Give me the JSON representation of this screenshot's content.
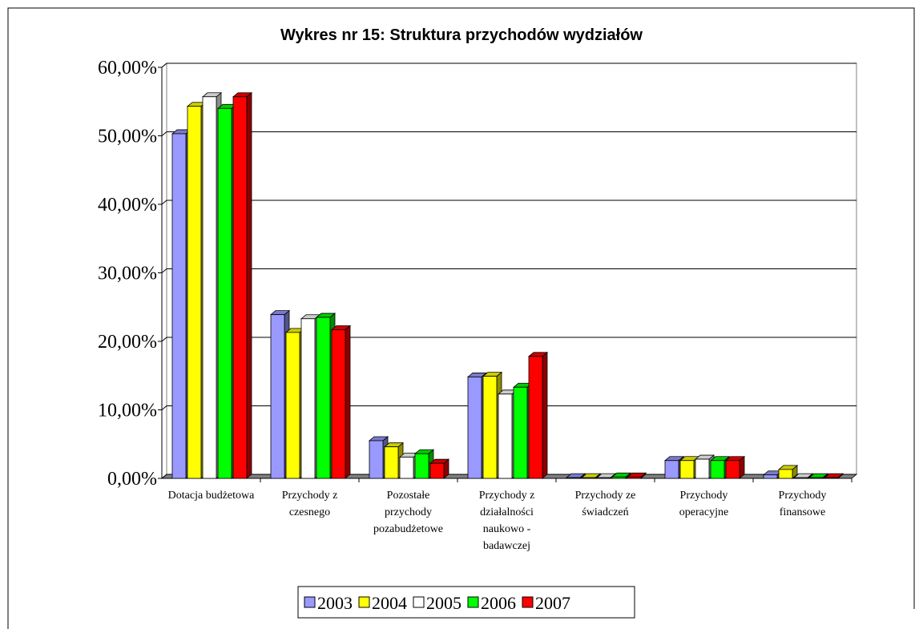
{
  "chart_data": {
    "type": "bar3d",
    "title": "Wykres nr 15: Struktura przychodów wydziałów",
    "categories": [
      "Dotacja budżetowa",
      "Przychody z czesnego",
      "Pozostałe przychody pozabudżetowe",
      "Przychody z działalności naukowo - badawczej",
      "Przychody ze świadczeń",
      "Przychody operacyjne",
      "Przychody finansowe"
    ],
    "series": [
      {
        "name": "2003",
        "color": "#9999ff",
        "values": [
          50.3,
          23.9,
          5.5,
          14.8,
          0.1,
          2.6,
          0.5
        ]
      },
      {
        "name": "2004",
        "color": "#ffff00",
        "values": [
          54.3,
          21.3,
          4.6,
          14.9,
          0.1,
          2.6,
          1.3
        ]
      },
      {
        "name": "2005",
        "color": "#ffffff",
        "values": [
          55.7,
          23.3,
          3.1,
          12.3,
          0.1,
          2.8,
          0.1
        ]
      },
      {
        "name": "2006",
        "color": "#00ff00",
        "values": [
          54.0,
          23.5,
          3.6,
          13.3,
          0.2,
          2.6,
          0.1
        ]
      },
      {
        "name": "2007",
        "color": "#ff0000",
        "values": [
          55.7,
          21.7,
          2.2,
          17.8,
          0.2,
          2.6,
          0.1
        ]
      }
    ],
    "ylim": [
      0,
      60
    ],
    "yticks": [
      {
        "value": 0,
        "label": "0,00%"
      },
      {
        "value": 10,
        "label": "10,00%"
      },
      {
        "value": 20,
        "label": "20,00%"
      },
      {
        "value": 30,
        "label": "30,00%"
      },
      {
        "value": 40,
        "label": "40,00%"
      },
      {
        "value": 50,
        "label": "50,00%"
      },
      {
        "value": 60,
        "label": "60,00%"
      }
    ],
    "grid": true,
    "legend": "bottom"
  }
}
